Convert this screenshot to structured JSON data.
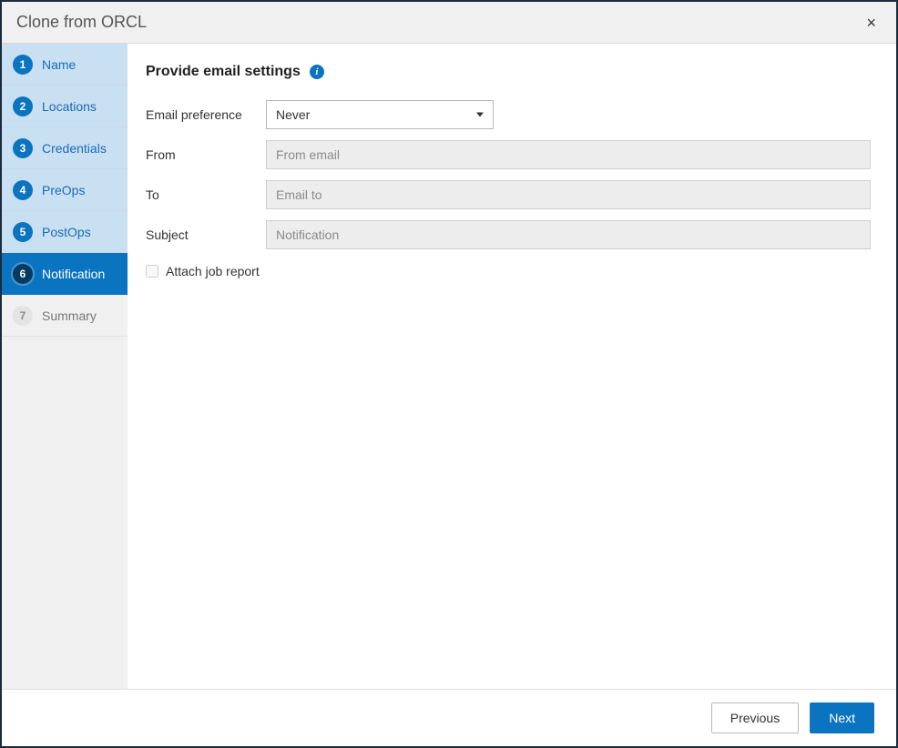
{
  "dialog": {
    "title": "Clone from ORCL",
    "close_symbol": "×"
  },
  "steps": [
    {
      "num": "1",
      "label": "Name",
      "state": "completed"
    },
    {
      "num": "2",
      "label": "Locations",
      "state": "completed"
    },
    {
      "num": "3",
      "label": "Credentials",
      "state": "completed"
    },
    {
      "num": "4",
      "label": "PreOps",
      "state": "completed"
    },
    {
      "num": "5",
      "label": "PostOps",
      "state": "completed"
    },
    {
      "num": "6",
      "label": "Notification",
      "state": "active"
    },
    {
      "num": "7",
      "label": "Summary",
      "state": "upcoming"
    }
  ],
  "main": {
    "heading": "Provide email settings",
    "info_tooltip_char": "i",
    "fields": {
      "email_preference": {
        "label": "Email preference",
        "value": "Never"
      },
      "from": {
        "label": "From",
        "placeholder": "From email",
        "value": ""
      },
      "to": {
        "label": "To",
        "placeholder": "Email to",
        "value": ""
      },
      "subject": {
        "label": "Subject",
        "placeholder": "Notification",
        "value": ""
      }
    },
    "attach_job_report": {
      "label": "Attach job report",
      "checked": false
    }
  },
  "footer": {
    "previous": "Previous",
    "next": "Next"
  },
  "colors": {
    "accent": "#0b74c0",
    "accent_dark": "#063a5e",
    "sidebar_completed_bg": "#c9e0f2",
    "sidebar_bg": "#f0f0f0",
    "input_disabled_bg": "#ededed",
    "border": "#b8b8b8",
    "dialog_border": "#1a2b3c"
  }
}
